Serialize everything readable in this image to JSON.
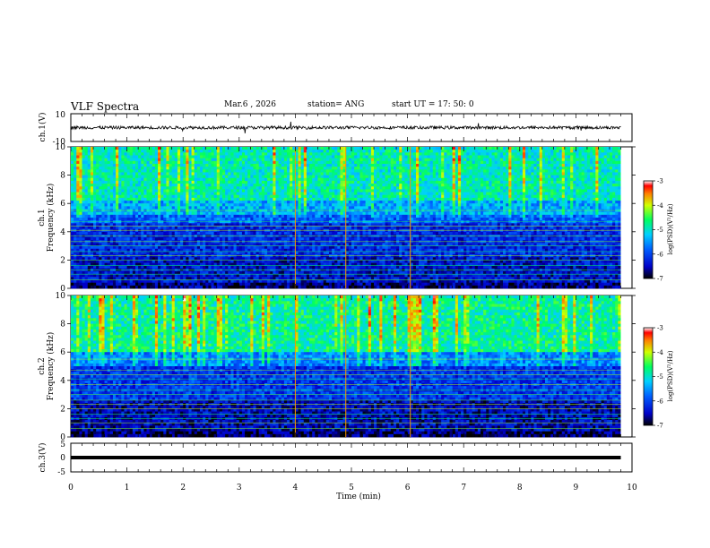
{
  "header": {
    "title": "VLF Spectra",
    "date": "Mar.6 , 2026",
    "station": "station= ANG",
    "start": "start UT = 17: 50: 0"
  },
  "chart_data": [
    {
      "type": "line",
      "id": "ch1-waveform",
      "ylabel": "ch.1(V)",
      "ylim": [
        -10,
        10
      ],
      "ytick_labels": [
        "10",
        "-10"
      ],
      "x_range_min": [
        0,
        9.8
      ],
      "level_V": 0,
      "description_values": "noisy trace near 0 V with occasional spikes"
    },
    {
      "type": "heatmap",
      "id": "ch1-spectrogram",
      "ylabel": "ch.1\nFrequency (kHz)",
      "ylabel_lines": [
        "ch.1",
        "Frequency (kHz)"
      ],
      "ylim": [
        0,
        10
      ],
      "ytick_labels": [
        "0",
        "2",
        "4",
        "6",
        "8",
        "10"
      ],
      "colorbar": {
        "label": "log(PSD)(V²/Hz)",
        "range": [
          -7,
          -3
        ],
        "tick_labels": [
          "-3",
          "-4",
          "-5",
          "-6",
          "-7"
        ]
      },
      "band_profile": [
        {
          "f_from": 0,
          "f_to": 0.4,
          "level": -6.7
        },
        {
          "f_from": 0.4,
          "f_to": 2.2,
          "level": -6.4
        },
        {
          "f_from": 2.2,
          "f_to": 4.6,
          "level": -6.2
        },
        {
          "f_from": 4.6,
          "f_to": 5.3,
          "level": -5.8
        },
        {
          "f_from": 5.3,
          "f_to": 6.2,
          "level": -5.4
        },
        {
          "f_from": 6.2,
          "f_to": 10,
          "level": -4.9
        }
      ],
      "strong_lines_min": [
        4.0,
        4.9,
        6.05
      ]
    },
    {
      "type": "heatmap",
      "id": "ch2-spectrogram",
      "ylabel": "ch.2\nFrequency (kHz)",
      "ylabel_lines": [
        "ch.2",
        "Frequency (kHz)"
      ],
      "ylim": [
        0,
        10
      ],
      "ytick_labels": [
        "0",
        "2",
        "4",
        "6",
        "8",
        "10"
      ],
      "colorbar": {
        "label": "log(PSD)(V²/Hz)",
        "range": [
          -7,
          -3
        ],
        "tick_labels": [
          "-3",
          "-4",
          "-5",
          "-6",
          "-7"
        ]
      },
      "band_profile": [
        {
          "f_from": 0,
          "f_to": 0.4,
          "level": -6.8
        },
        {
          "f_from": 0.4,
          "f_to": 2.6,
          "level": -6.5
        },
        {
          "f_from": 2.6,
          "f_to": 5.0,
          "level": -6.1
        },
        {
          "f_from": 5.0,
          "f_to": 6.0,
          "level": -5.6
        },
        {
          "f_from": 6.0,
          "f_to": 10,
          "level": -4.8
        }
      ],
      "strong_lines_min": [
        4.0,
        4.9,
        6.05
      ]
    },
    {
      "type": "line",
      "id": "ch3-waveform",
      "ylabel": "ch.3(V)",
      "ylim": [
        -5,
        5
      ],
      "ytick_labels": [
        "5",
        "0",
        "-5"
      ],
      "level_V": 0,
      "x_range_min": [
        0,
        9.8
      ]
    }
  ],
  "xaxis": {
    "label": "Time (min)",
    "range": [
      0,
      10
    ],
    "tick_labels": [
      "0",
      "1",
      "2",
      "3",
      "4",
      "5",
      "6",
      "7",
      "8",
      "9",
      "10"
    ]
  }
}
